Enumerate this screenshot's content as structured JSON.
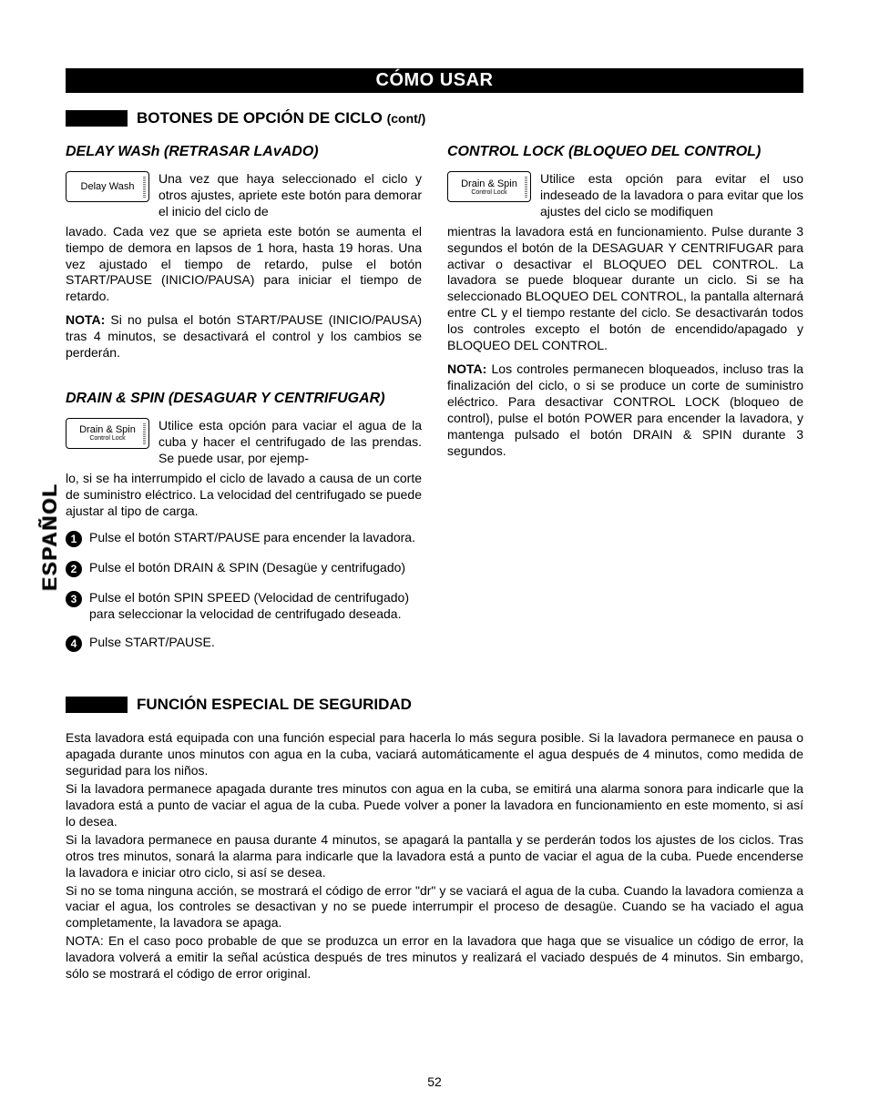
{
  "page_number": "52",
  "side_tab": "ESPAÑOL",
  "main_title": "CÓMO USAR",
  "section1": {
    "title": "BOTONES DE OPCIÓN DE CICLO",
    "cont": "(cont/)"
  },
  "delay_wash": {
    "heading": "DELAY WASh (RETRASAR LAvADO)",
    "button_label": "Delay Wash",
    "intro": "Una vez que haya seleccionado el ciclo y otros ajustes, apriete este botón para demorar el inicio del ciclo de",
    "body": "lavado. Cada vez que se aprieta este botón se aumenta el tiempo de demora en lapsos de 1 hora, hasta 19 horas. Una vez ajustado el tiempo de retardo, pulse el botón START/PAUSE (INICIO/PAUSA) para iniciar el tiempo de retardo.",
    "note_label": "NOTA:",
    "note_text": " Si no pulsa el botón START/PAUSE (INICIO/PAUSA) tras 4 minutos, se desactivará el control y los cambios se perderán."
  },
  "drain_spin": {
    "heading": "DRAIN & SPIN (DESAGUAR Y CENTRIFUGAR)",
    "button_label": "Drain & Spin",
    "button_sub": "Control Lock",
    "intro": "Utilice esta opción para vaciar el agua de la cuba y hacer el centrifugado de las prendas. Se puede usar, por ejemp-",
    "body": "lo, si se ha interrumpido el ciclo de lavado a causa de un corte de suministro eléctrico. La velocidad del centrifugado se puede ajustar al tipo de carga.",
    "steps": [
      "Pulse el botón START/PAUSE para encender la lavadora.",
      "Pulse el botón DRAIN & SPIN (Desagüe y centrifugado)",
      "Pulse el botón SPIN SPEED (Velocidad de centrifugado) para seleccionar la velocidad de centrifugado deseada.",
      "Pulse START/PAUSE."
    ]
  },
  "control_lock": {
    "heading": "CONTROL LOCK (BLOQUEO DEL CONTROL)",
    "button_label": "Drain & Spin",
    "button_sub": "Control Lock",
    "intro": "Utilice esta opción para evitar el uso indeseado de la lavadora o para evitar que los ajustes del ciclo se modifiquen",
    "body": "mientras la lavadora está en funcionamiento. Pulse durante 3 segundos el botón de la DESAGUAR Y CENTRIFUGAR para activar o desactivar el BLOQUEO DEL CONTROL. La lavadora se puede bloquear durante un ciclo. Si se ha seleccionado BLOQUEO DEL CONTROL, la pantalla alternará entre CL y el tiempo restante del ciclo. Se desactivarán todos los controles excepto el botón de encendido/apagado y BLOQUEO DEL CONTROL.",
    "note_label": "NOTA:",
    "note_text": " Los controles permanecen bloqueados, incluso tras la finalización del ciclo, o si se produce un corte de suministro eléctrico.  Para desactivar CONTROL LOCK (bloqueo de control), pulse el botón POWER para encender la lavadora, y mantenga pulsado el botón DRAIN & SPIN durante 3 segundos."
  },
  "safety": {
    "title": "FUNCIÓN ESPECIAL DE SEGURIDAD",
    "p1": "Esta lavadora está equipada con una función especial para hacerla lo más segura posible. Si la lavadora permanece en pausa o apagada durante unos minutos con agua en la cuba, vaciará automáticamente el agua después de 4 minutos, como medida de seguridad para los niños.",
    "p2": "Si la lavadora permanece apagada durante tres minutos con agua en la cuba, se emitirá una alarma sonora para indicarle que la lavadora está a punto de vaciar el agua de la cuba. Puede volver a poner la lavadora en funcionamiento en este momento, si así lo desea.",
    "p3": "Si la lavadora permanece en pausa durante 4 minutos, se apagará la pantalla y se perderán todos los ajustes de los ciclos. Tras otros tres minutos, sonará la alarma para indicarle que la lavadora está a punto de vaciar el agua de la cuba. Puede encenderse la lavadora e iniciar otro ciclo, si así se desea.",
    "p4": "Si no se toma ninguna acción, se mostrará el código de error \"dr\" y se vaciará el agua de la cuba. Cuando la lavadora comienza a vaciar el agua, los controles se desactivan y no se puede interrumpir el proceso de desagüe. Cuando se ha vaciado el agua completamente, la lavadora se apaga.",
    "p5": "NOTA: En el caso poco probable de que se produzca un error en la lavadora que haga que se visualice un código de error, la lavadora volverá a emitir la señal acústica después de tres minutos y realizará el vaciado después de 4 minutos. Sin embargo, sólo se mostrará el código de error original."
  }
}
